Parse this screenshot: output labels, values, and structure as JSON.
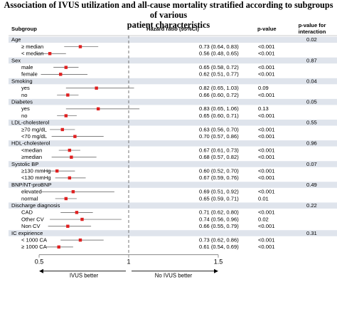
{
  "title_line1": "Association of IVUS utilization and all-cause mortality stratified according to subgroups of various",
  "title_line2": "patient characteristics",
  "headers": {
    "subgroup": "Subgroup",
    "hazard_ratio": "Hazard ratio (95%CI)",
    "p_value": "p-value",
    "p_interaction_1": "p-value for",
    "p_interaction_2": "interaction"
  },
  "colors": {
    "band": "#dfe4ec",
    "marker": "#e02020",
    "ci": "#555555",
    "ref_line": "#666666"
  },
  "chart_data": {
    "type": "forest",
    "xlim": [
      0.5,
      1.5
    ],
    "x_ticks": [
      "0.5",
      "1",
      "1.5"
    ],
    "reference_line": 1,
    "arrow_labels": [
      "IVUS better",
      "No IVUS better"
    ],
    "groups": [
      {
        "name": "Age",
        "p_interaction": "0.02",
        "rows": [
          {
            "label": "≥ median",
            "hr": 0.73,
            "lo": 0.64,
            "hi": 0.83,
            "text": "0.73 (0.64, 0.83)",
            "p": "<0.001"
          },
          {
            "label": "< median",
            "hr": 0.56,
            "lo": 0.48,
            "hi": 0.65,
            "text": "0.56 (0.48, 0.65)",
            "p": "<0.001"
          }
        ]
      },
      {
        "name": "Sex",
        "p_interaction": "0.87",
        "rows": [
          {
            "label": "male",
            "hr": 0.65,
            "lo": 0.58,
            "hi": 0.72,
            "text": "0.65 (0.58, 0.72)",
            "p": "<0.001"
          },
          {
            "label": "female",
            "hr": 0.62,
            "lo": 0.51,
            "hi": 0.77,
            "text": "0.62 (0.51, 0.77)",
            "p": "<0.001"
          }
        ]
      },
      {
        "name": "Smoking",
        "p_interaction": "0.04",
        "rows": [
          {
            "label": "yes",
            "hr": 0.82,
            "lo": 0.65,
            "hi": 1.03,
            "text": "0.82 (0.65, 1.03)",
            "p": "0.09"
          },
          {
            "label": "no",
            "hr": 0.66,
            "lo": 0.6,
            "hi": 0.72,
            "text": "0.66 (0.60, 0.72)",
            "p": "<0.001"
          }
        ]
      },
      {
        "name": "Diabetes",
        "p_interaction": "0.05",
        "rows": [
          {
            "label": "yes",
            "hr": 0.83,
            "lo": 0.65,
            "hi": 1.06,
            "text": "0.83 (0.65, 1.06)",
            "p": "0.13"
          },
          {
            "label": "no",
            "hr": 0.65,
            "lo": 0.6,
            "hi": 0.71,
            "text": "0.65 (0.60, 0.71)",
            "p": "<0.001"
          }
        ]
      },
      {
        "name": "LDL-cholesterol",
        "p_interaction": "0.55",
        "rows": [
          {
            "label": "≥70 mg/dL",
            "hr": 0.63,
            "lo": 0.56,
            "hi": 0.7,
            "text": "0.63 (0.56, 0.70)",
            "p": "<0.001"
          },
          {
            "label": "<70 mg/dL",
            "hr": 0.7,
            "lo": 0.57,
            "hi": 0.86,
            "text": "0.70 (0.57, 0.86)",
            "p": "<0.001"
          }
        ]
      },
      {
        "name": "HDL-cholesterol",
        "p_interaction": "0.96",
        "rows": [
          {
            "label": "<median",
            "hr": 0.67,
            "lo": 0.61,
            "hi": 0.73,
            "text": "0.67 (0.61, 0.73)",
            "p": "<0.001"
          },
          {
            "label": "≥median",
            "hr": 0.68,
            "lo": 0.57,
            "hi": 0.82,
            "text": "0.68 (0.57, 0.82)",
            "p": "<0.001"
          }
        ]
      },
      {
        "name": "Systolic BP",
        "p_interaction": "0.07",
        "rows": [
          {
            "label": "≥130 mmHg",
            "hr": 0.6,
            "lo": 0.52,
            "hi": 0.7,
            "text": "0.60 (0.52, 0.70)",
            "p": "<0.001"
          },
          {
            "label": "<130 mmHg",
            "hr": 0.67,
            "lo": 0.59,
            "hi": 0.76,
            "text": "0.67 (0.59, 0.76)",
            "p": "<0.001"
          }
        ]
      },
      {
        "name": "BNP/NT-proBNP",
        "p_interaction": "0.49",
        "rows": [
          {
            "label": "elevated",
            "hr": 0.69,
            "lo": 0.51,
            "hi": 0.92,
            "text": "0.69 (0.51, 0.92)",
            "p": "<0.001"
          },
          {
            "label": "normal",
            "hr": 0.65,
            "lo": 0.59,
            "hi": 0.71,
            "text": "0.65 (0.59, 0.71)",
            "p": "0.01"
          }
        ]
      },
      {
        "name": "Discharge diagnosis",
        "p_interaction": "0.22",
        "rows": [
          {
            "label": "CAD",
            "hr": 0.71,
            "lo": 0.62,
            "hi": 0.8,
            "text": "0.71 (0.62, 0.80)",
            "p": "<0.001"
          },
          {
            "label": "Other CV",
            "hr": 0.74,
            "lo": 0.56,
            "hi": 0.96,
            "text": "0.74 (0.56, 0.96)",
            "p": "0.02"
          },
          {
            "label": "Non CV",
            "hr": 0.66,
            "lo": 0.55,
            "hi": 0.79,
            "text": "0.66 (0.55, 0.79)",
            "p": "<0.001"
          }
        ]
      },
      {
        "name": "IC expirience",
        "p_interaction": "0.31",
        "rows": [
          {
            "label": "< 1000 CA",
            "hr": 0.73,
            "lo": 0.62,
            "hi": 0.86,
            "text": "0.73 (0.62, 0.86)",
            "p": "<0.001"
          },
          {
            "label": "≥ 1000 CA",
            "hr": 0.61,
            "lo": 0.54,
            "hi": 0.69,
            "text": "0.61 (0.54, 0.69)",
            "p": "<0.001"
          }
        ]
      }
    ]
  }
}
